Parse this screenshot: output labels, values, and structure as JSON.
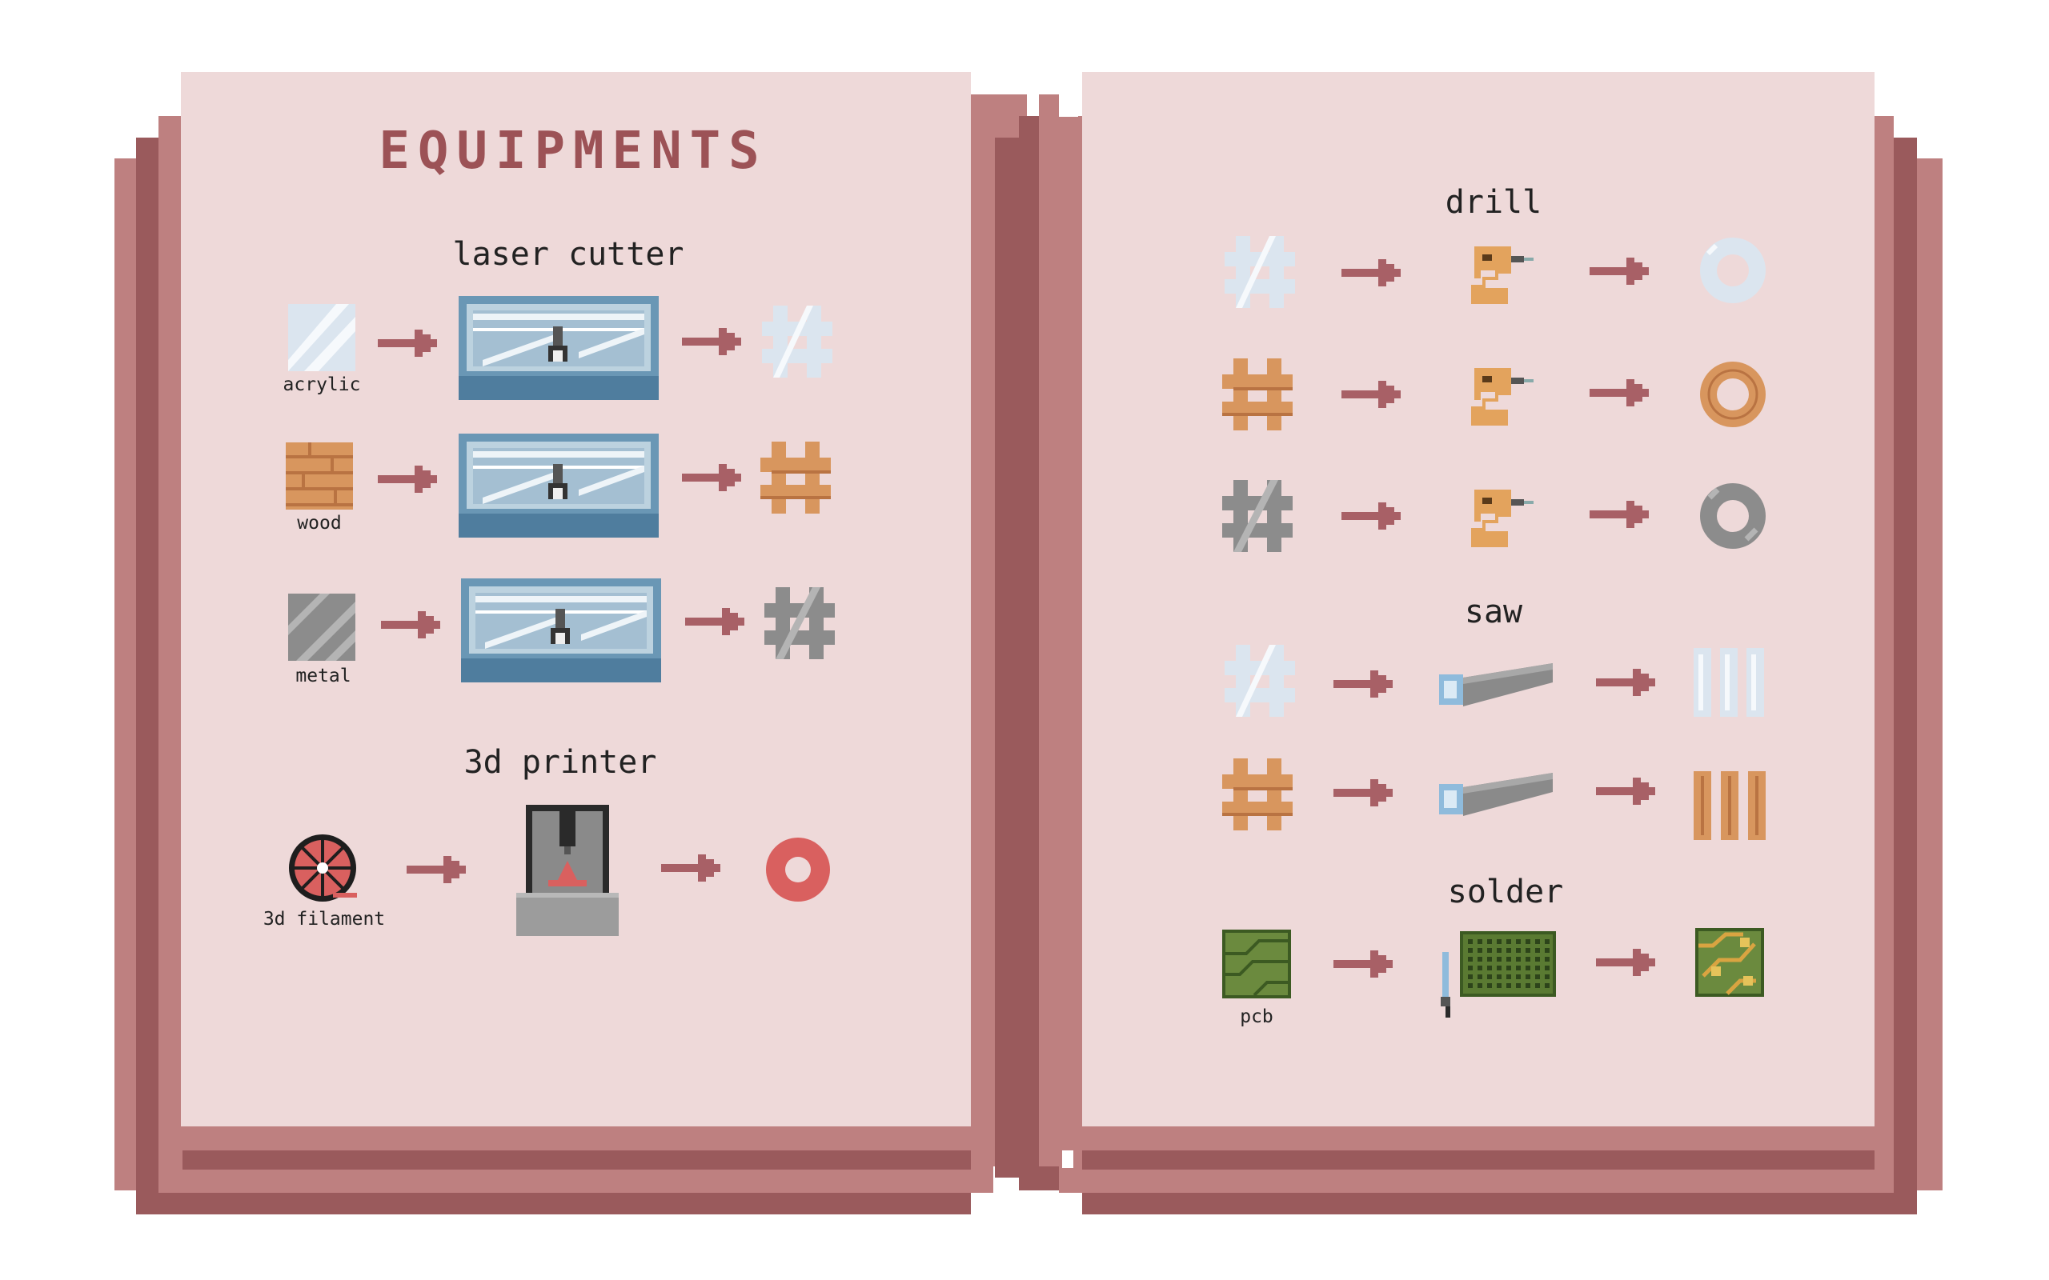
{
  "title": "EQUIPMENTS",
  "sections": {
    "laser_cutter": "laser cutter",
    "printer_3d": "3d printer",
    "drill": "drill",
    "saw": "saw",
    "solder": "solder"
  },
  "materials": {
    "acrylic": "acrylic",
    "wood": "wood",
    "metal": "metal",
    "filament": "3d filament",
    "pcb": "pcb"
  },
  "colors": {
    "page": "#eed9d9",
    "cover_light": "#be8080",
    "cover_dark": "#9a5a5c",
    "arrow": "#a86066",
    "title": "#9c5256",
    "acrylic": "#dbe5ef",
    "wood": "#d8965e",
    "metal": "#8c8c8c",
    "pcb": "#6b8a3e",
    "filament": "#d9605f"
  },
  "icons": [
    "acrylic-sheet-icon",
    "wood-plank-icon",
    "metal-sheet-icon",
    "laser-cutter-icon",
    "cut-shape-icon",
    "filament-spool-icon",
    "3d-printer-icon",
    "printed-ring-icon",
    "hand-drill-icon",
    "drilled-ring-icon",
    "hand-saw-icon",
    "sawn-strips-icon",
    "soldering-iron-icon",
    "circuit-board-icon",
    "arrow-right-icon"
  ]
}
